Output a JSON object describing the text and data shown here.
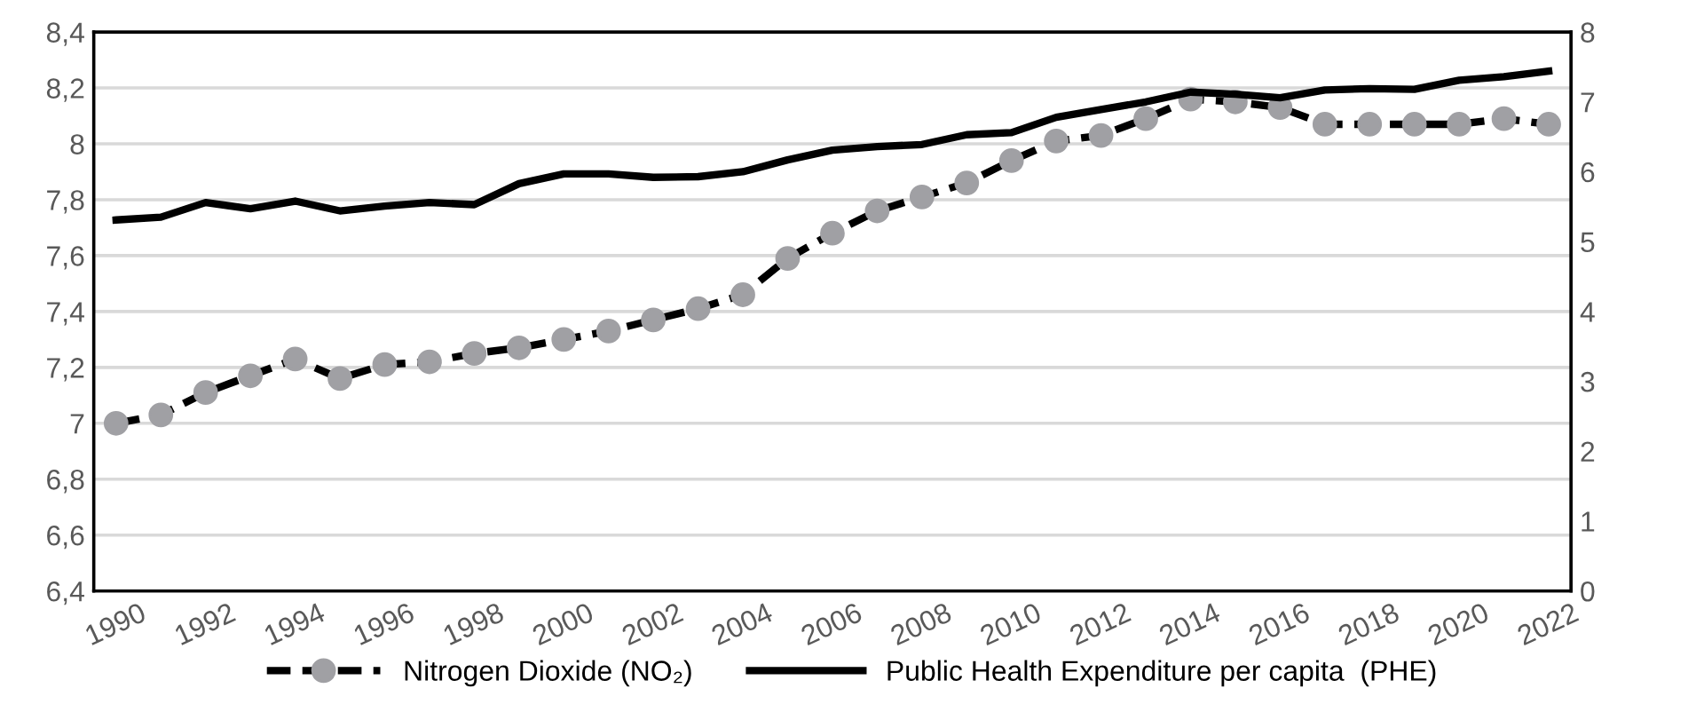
{
  "chart_data": {
    "type": "line",
    "x": [
      1990,
      1991,
      1992,
      1993,
      1994,
      1995,
      1996,
      1997,
      1998,
      1999,
      2000,
      2001,
      2002,
      2003,
      2004,
      2005,
      2006,
      2007,
      2008,
      2009,
      2010,
      2011,
      2012,
      2013,
      2014,
      2015,
      2016,
      2017,
      2018,
      2019,
      2020,
      2021,
      2022
    ],
    "series": [
      {
        "name": "Nitrogen Dioxide (NO₂)",
        "color": "#000000",
        "marker": "circle",
        "line_style": "dashed",
        "values": [
          7.0,
          7.03,
          7.11,
          7.17,
          7.23,
          7.16,
          7.21,
          7.22,
          7.25,
          7.27,
          7.3,
          7.33,
          7.37,
          7.41,
          7.46,
          7.59,
          7.68,
          7.76,
          7.81,
          7.86,
          7.94,
          8.01,
          8.03,
          8.09,
          8.16,
          8.15,
          8.13,
          8.07,
          8.07,
          8.07,
          8.07,
          8.09,
          8.07
        ]
      },
      {
        "name": "Public Health Expenditure per capita  (PHE)",
        "color": "#000000",
        "marker": "none",
        "line_style": "solid",
        "axis": "y2",
        "values": [
          5.31,
          5.35,
          5.56,
          5.47,
          5.58,
          5.44,
          5.51,
          5.56,
          5.53,
          5.83,
          5.97,
          5.97,
          5.92,
          5.93,
          6.0,
          6.17,
          6.31,
          6.36,
          6.39,
          6.53,
          6.56,
          6.78,
          6.89,
          7.0,
          7.14,
          7.11,
          7.06,
          7.17,
          7.19,
          7.18,
          7.31,
          7.36,
          7.44
        ]
      }
    ],
    "xlim": [
      1989.5,
      2022.5
    ],
    "xticks": [
      1990,
      1992,
      1994,
      1996,
      1998,
      2000,
      2002,
      2004,
      2006,
      2008,
      2010,
      2012,
      2014,
      2016,
      2018,
      2020,
      2022
    ],
    "ylim": [
      6.4,
      8.4
    ],
    "yticks": [
      {
        "value": 6.4,
        "label": "6,4"
      },
      {
        "value": 6.6,
        "label": "6,6"
      },
      {
        "value": 6.8,
        "label": "6,8"
      },
      {
        "value": 7,
        "label": "7"
      },
      {
        "value": 7.2,
        "label": "7,2"
      },
      {
        "value": 7.4,
        "label": "7,4"
      },
      {
        "value": 7.6,
        "label": "7,6"
      },
      {
        "value": 7.8,
        "label": "7,8"
      },
      {
        "value": 8,
        "label": "8"
      },
      {
        "value": 8.2,
        "label": "8,2"
      },
      {
        "value": 8.4,
        "label": "8,4"
      }
    ],
    "y2lim": [
      0,
      8
    ],
    "y2ticks": [
      0,
      1,
      2,
      3,
      4,
      5,
      6,
      7,
      8
    ],
    "grid": "y",
    "legend": "bottom"
  }
}
